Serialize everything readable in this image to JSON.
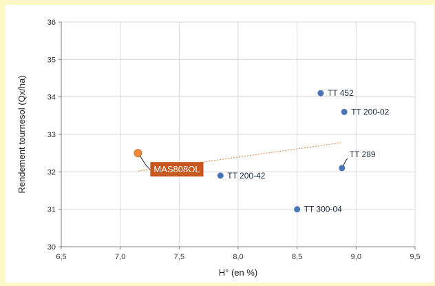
{
  "colors": {
    "background": "#fdf8c8",
    "gridline": "#d9d9d9",
    "point": "#4a74b8",
    "highlight": "#f08a3a",
    "highlight_label_bg": "#c8571e",
    "trendline": "#e07a2a"
  },
  "chart_data": {
    "type": "scatter",
    "title": "",
    "xlabel": "H° (en %)",
    "ylabel": "Rendement tournesol (Qx/ha)",
    "xlim": [
      6.5,
      9.5
    ],
    "ylim": [
      30,
      36
    ],
    "xticks": [
      "6,5",
      "7,0",
      "7,5",
      "8,0",
      "8,5",
      "9,0",
      "9,5"
    ],
    "yticks": [
      "30",
      "31",
      "32",
      "33",
      "34",
      "35",
      "36"
    ],
    "grid": true,
    "points": [
      {
        "label": "MAS808OL",
        "x": 7.15,
        "y": 32.5,
        "highlight": true
      },
      {
        "label": "TT 200-42",
        "x": 7.85,
        "y": 31.9,
        "highlight": false
      },
      {
        "label": "TT 300-04",
        "x": 8.5,
        "y": 31.0,
        "highlight": false
      },
      {
        "label": "TT 452",
        "x": 8.7,
        "y": 34.1,
        "highlight": false
      },
      {
        "label": "TT 200-02",
        "x": 8.9,
        "y": 33.6,
        "highlight": false
      },
      {
        "label": "TT 289",
        "x": 8.88,
        "y": 32.1,
        "highlight": false
      }
    ],
    "trendline": {
      "x": [
        7.15,
        8.88
      ],
      "y": [
        32.02,
        32.78
      ]
    }
  }
}
